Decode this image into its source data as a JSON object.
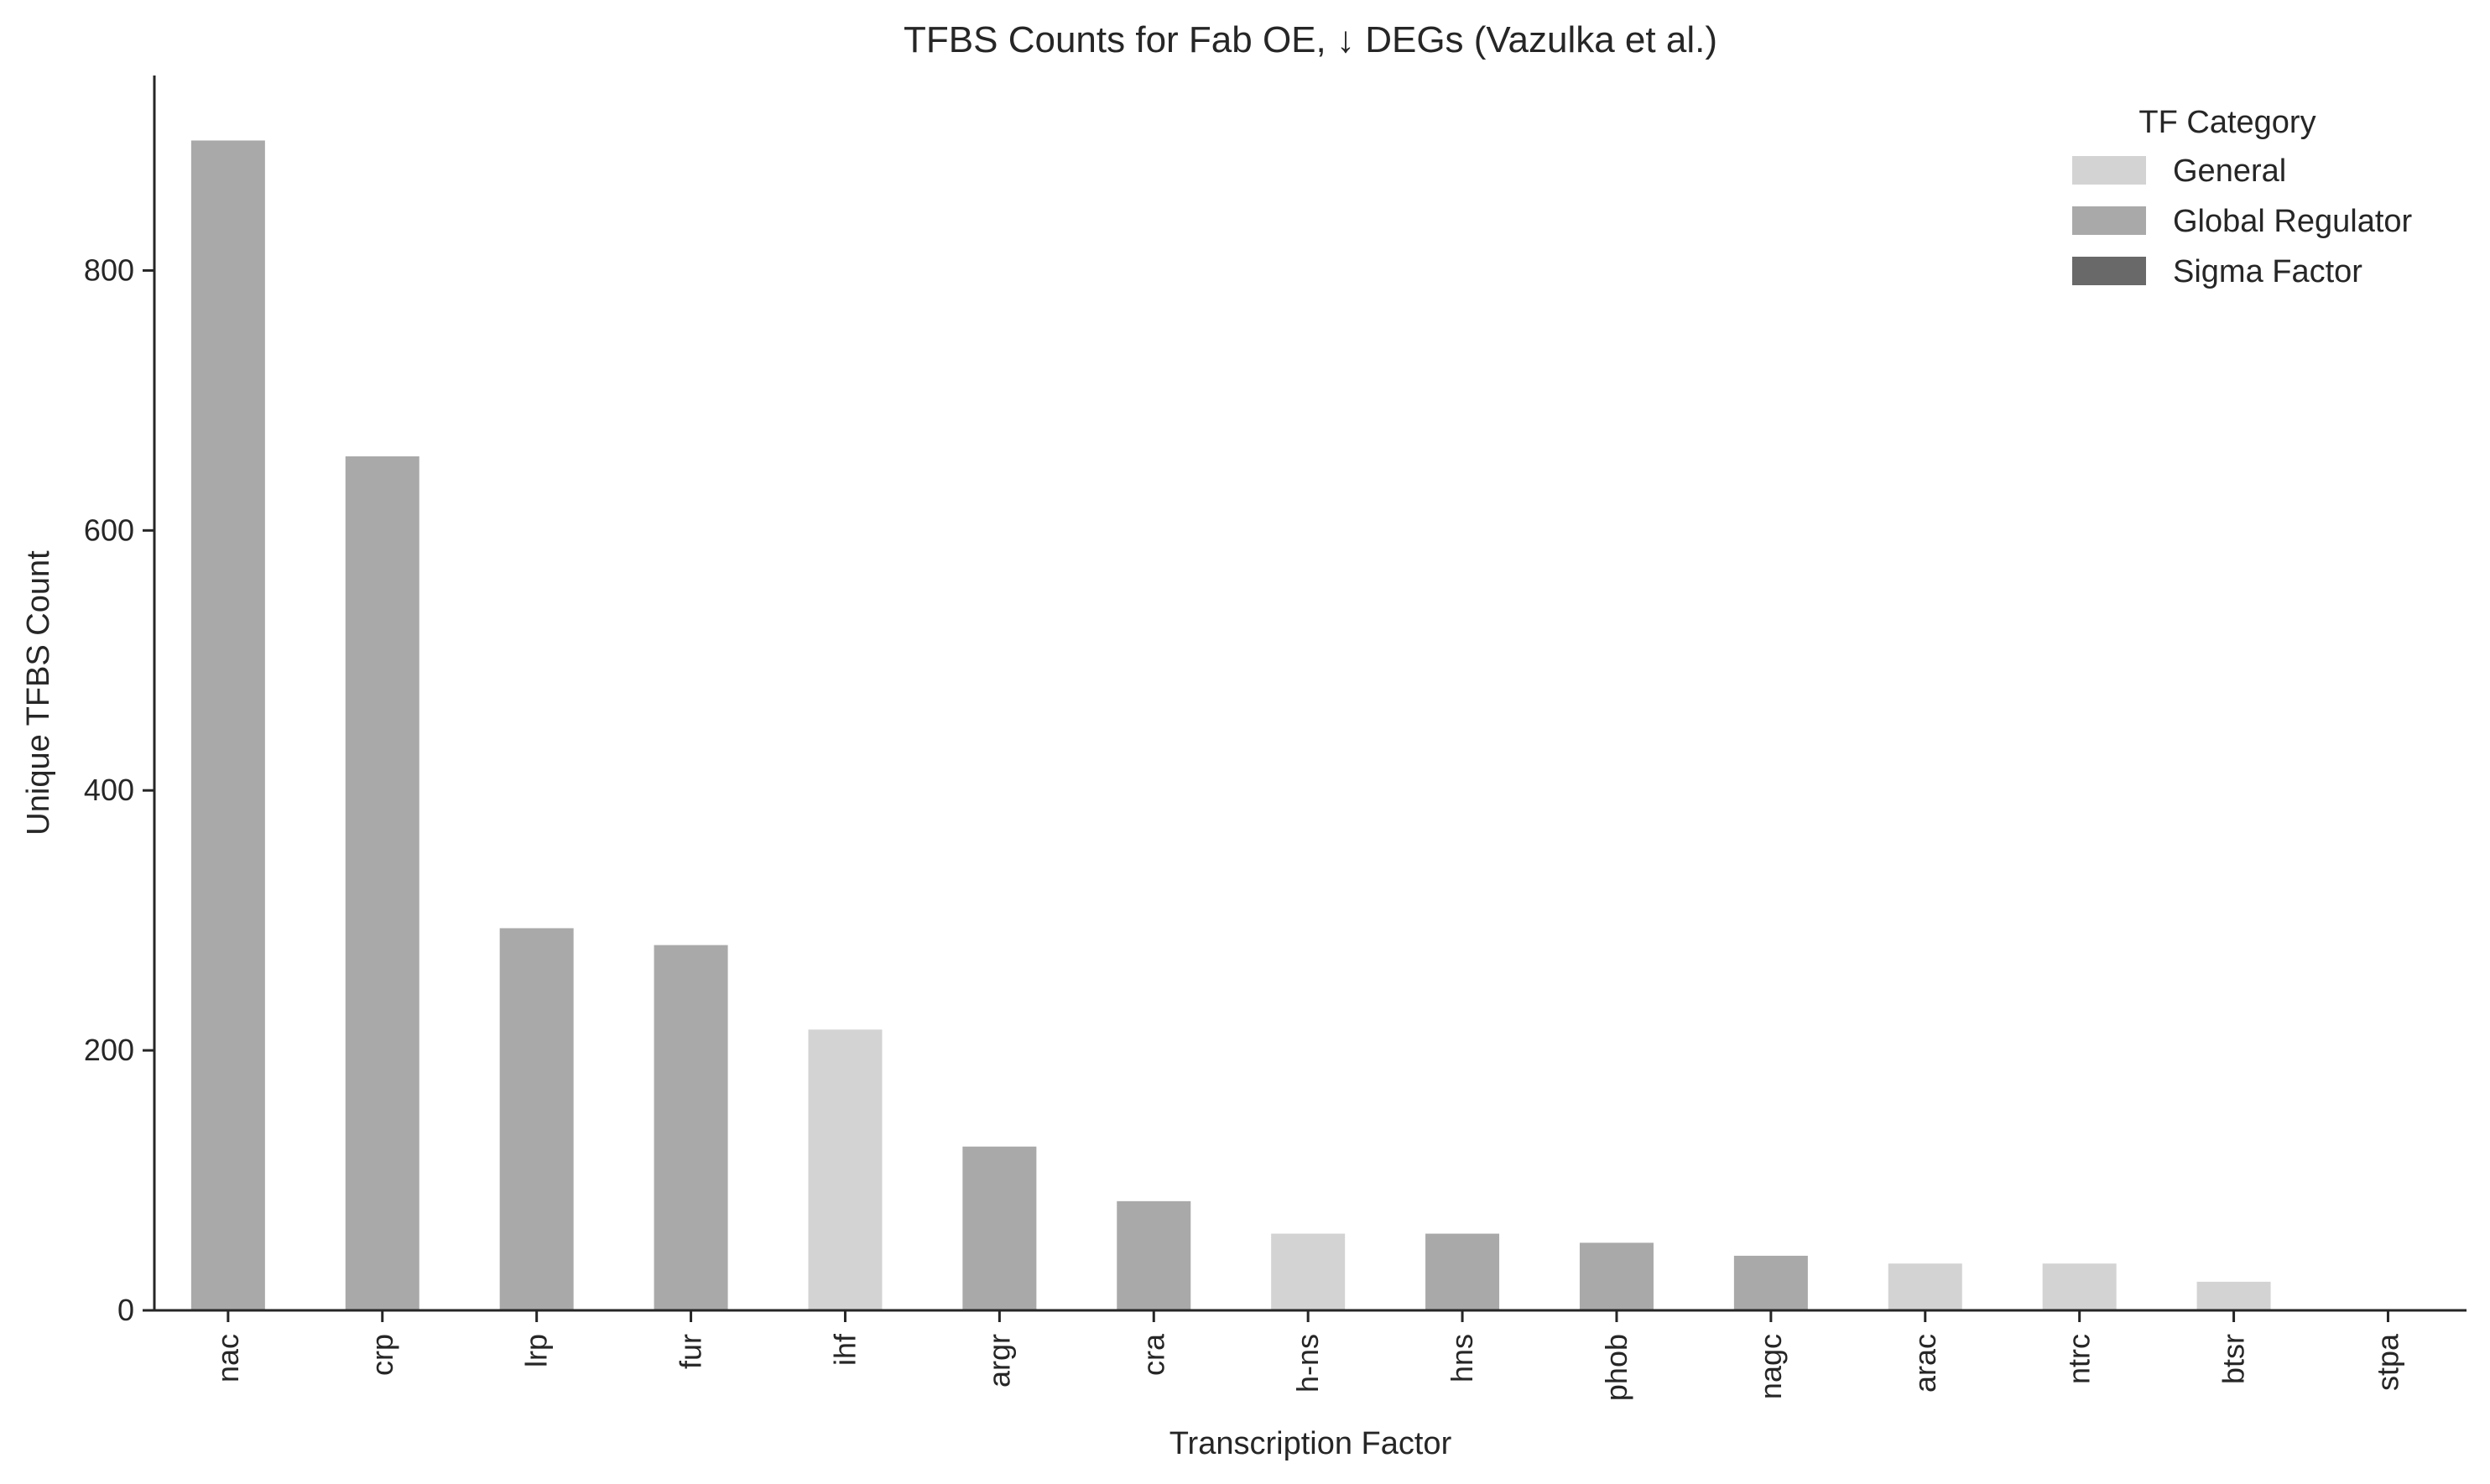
{
  "chart_data": {
    "type": "bar",
    "title": "TFBS Counts for Fab OE, ↓ DEGs (Vazulka et al.)",
    "xlabel": "Transcription Factor",
    "ylabel": "Unique TFBS Count",
    "ylim": [
      0,
      950
    ],
    "yticks": [
      0,
      200,
      400,
      600,
      800
    ],
    "grid": false,
    "categories": [
      "nac",
      "crp",
      "lrp",
      "fur",
      "ihf",
      "argr",
      "cra",
      "h-ns",
      "hns",
      "phob",
      "nagc",
      "arac",
      "ntrc",
      "btsr",
      "stpa"
    ],
    "values": [
      900,
      657,
      294,
      281,
      216,
      126,
      84,
      59,
      59,
      52,
      42,
      36,
      36,
      22,
      0
    ],
    "bar_category": [
      "Global Regulator",
      "Global Regulator",
      "Global Regulator",
      "Global Regulator",
      "General",
      "Global Regulator",
      "Global Regulator",
      "General",
      "Global Regulator",
      "Global Regulator",
      "Global Regulator",
      "General",
      "General",
      "General",
      "General"
    ],
    "legend": {
      "title": "TF Category",
      "placement": "top-right",
      "entries": [
        {
          "label": "General",
          "color": "#d3d3d3"
        },
        {
          "label": "Global Regulator",
          "color": "#a9a9a9"
        },
        {
          "label": "Sigma Factor",
          "color": "#696969"
        }
      ]
    }
  }
}
